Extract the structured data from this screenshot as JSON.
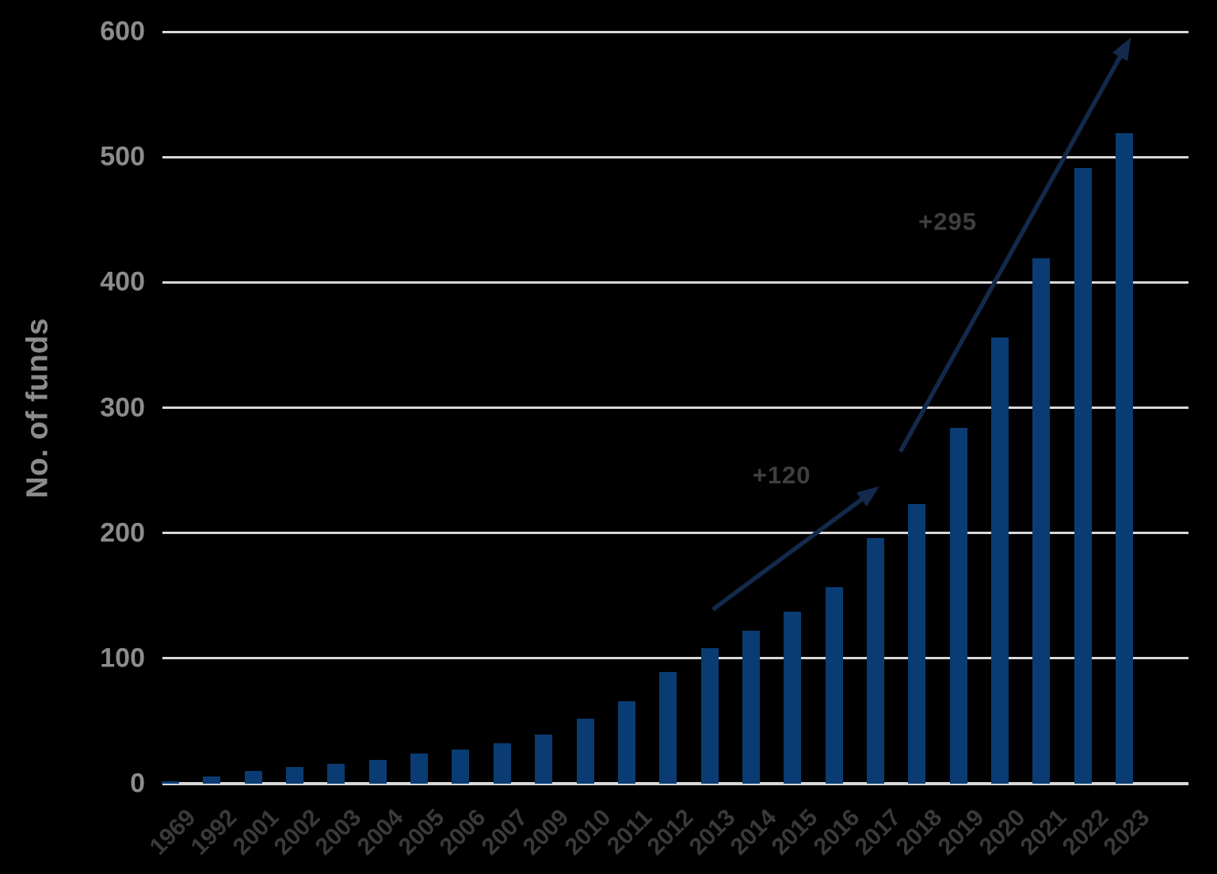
{
  "colors": {
    "background": "#000000",
    "bar": "#0a3c73",
    "arrow": "#142a4c",
    "gridline": "#d9d9d9",
    "y_tick_label": "#8c8c8c",
    "x_tick_label": "#3a3a3a",
    "axis_title": "#8c8c8c",
    "annotation_text": "#3f3f3f"
  },
  "chart_data": {
    "type": "bar",
    "title": "",
    "xlabel": "",
    "ylabel": "No. of funds",
    "ylim": [
      0,
      600
    ],
    "yticks": [
      0,
      100,
      200,
      300,
      400,
      500,
      600
    ],
    "grid": "horizontal",
    "legend": "none",
    "categories": [
      "1969",
      "1992",
      "2001",
      "2002",
      "2003",
      "2004",
      "2005",
      "2006",
      "2007",
      "2009",
      "2010",
      "2011",
      "2012",
      "2013",
      "2014",
      "2015",
      "2016",
      "2017",
      "2018",
      "2019",
      "2020",
      "2021",
      "2022",
      "2023"
    ],
    "values": [
      2,
      6,
      10,
      13,
      16,
      19,
      24,
      27,
      32,
      39,
      52,
      66,
      89,
      108,
      122,
      137,
      157,
      196,
      223,
      284,
      356,
      419,
      491,
      519
    ],
    "annotations": [
      {
        "label": "+120",
        "arrow_from": {
          "x_index": 13.08,
          "value": 139
        },
        "arrow_to": {
          "x_index": 17.0,
          "value": 235
        },
        "label_at": {
          "x_index": 14.74,
          "value": 246
        }
      },
      {
        "label": "+295",
        "arrow_from": {
          "x_index": 17.6,
          "value": 265
        },
        "arrow_to": {
          "x_index": 23.1,
          "value": 592
        },
        "label_at": {
          "x_index": 18.74,
          "value": 448
        }
      }
    ]
  }
}
